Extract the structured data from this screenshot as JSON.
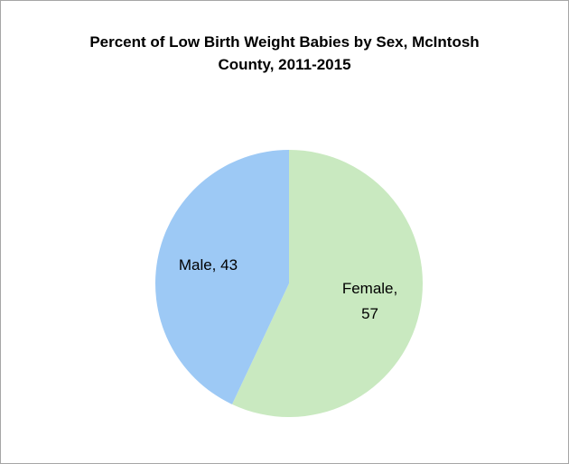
{
  "chart_data": {
    "type": "pie",
    "title": "Percent of Low Birth Weight Babies by Sex, McIntosh County, 2011-2015",
    "categories": [
      "Female",
      "Male"
    ],
    "values": [
      57,
      43
    ],
    "value_labels": [
      "Female, 57",
      "Male, 43"
    ],
    "colors": [
      "#c9e9c0",
      "#9dc9f5"
    ]
  }
}
